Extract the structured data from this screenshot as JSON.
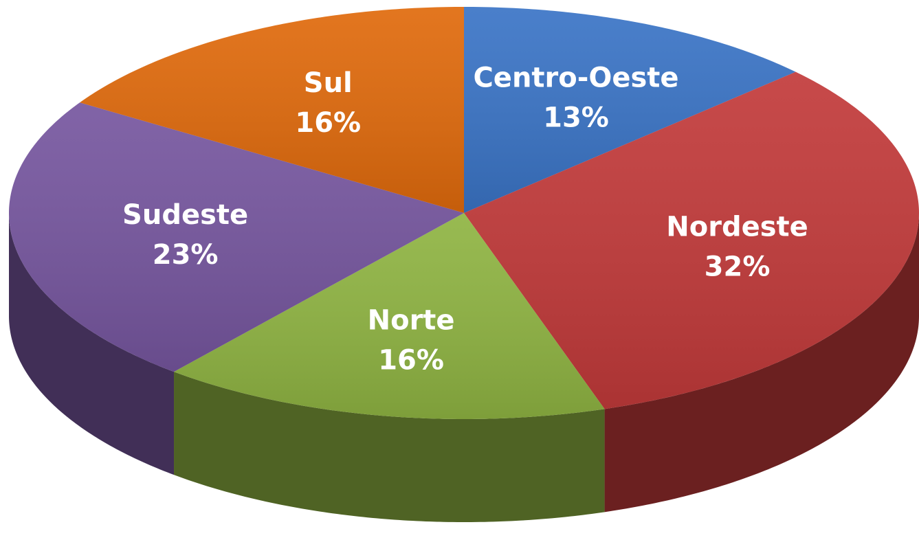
{
  "chart_data": {
    "type": "pie",
    "categories": [
      "Centro-Oeste",
      "Nordeste",
      "Norte",
      "Sudeste",
      "Sul"
    ],
    "values": [
      13,
      32,
      16,
      23,
      16
    ],
    "value_labels": [
      "13%",
      "32%",
      "16%",
      "23%",
      "16%"
    ],
    "colors": [
      "#3a74c6",
      "#c23a3a",
      "#8fb442",
      "#76569f",
      "#e06a0c"
    ]
  }
}
